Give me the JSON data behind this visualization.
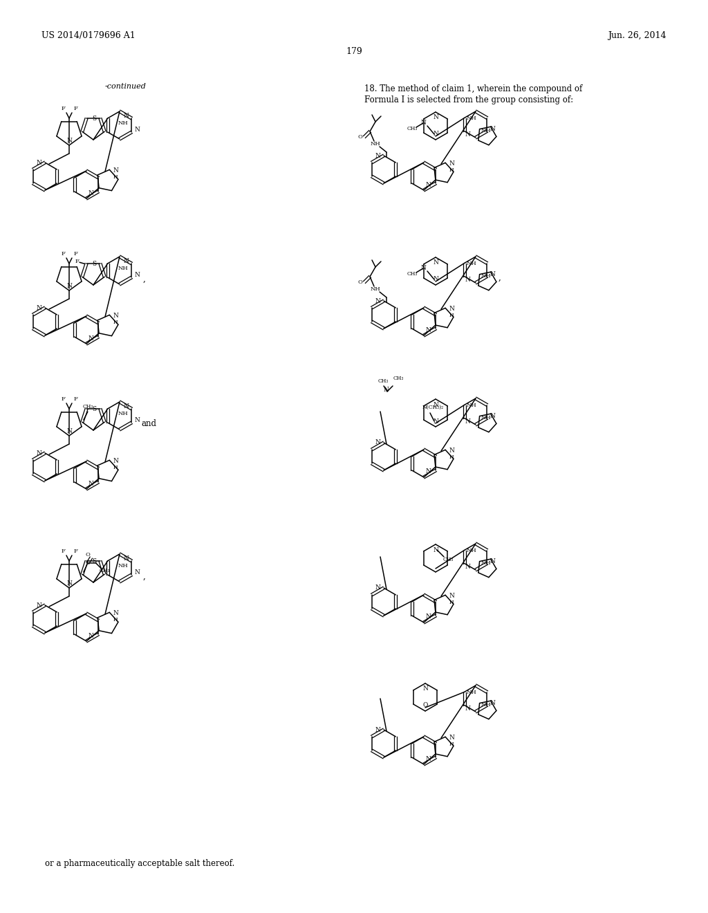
{
  "header_left": "US 2014/0179696 A1",
  "header_right": "Jun. 26, 2014",
  "page_number": "179",
  "continued_text": "-continued",
  "claim_line1": "18. The method of claim 1, wherein the compound of",
  "claim_line2": "Formula I is selected from the group consisting of:",
  "footer_text": "or a pharmaceutically acceptable salt thereof.",
  "bg_color": "#ffffff"
}
